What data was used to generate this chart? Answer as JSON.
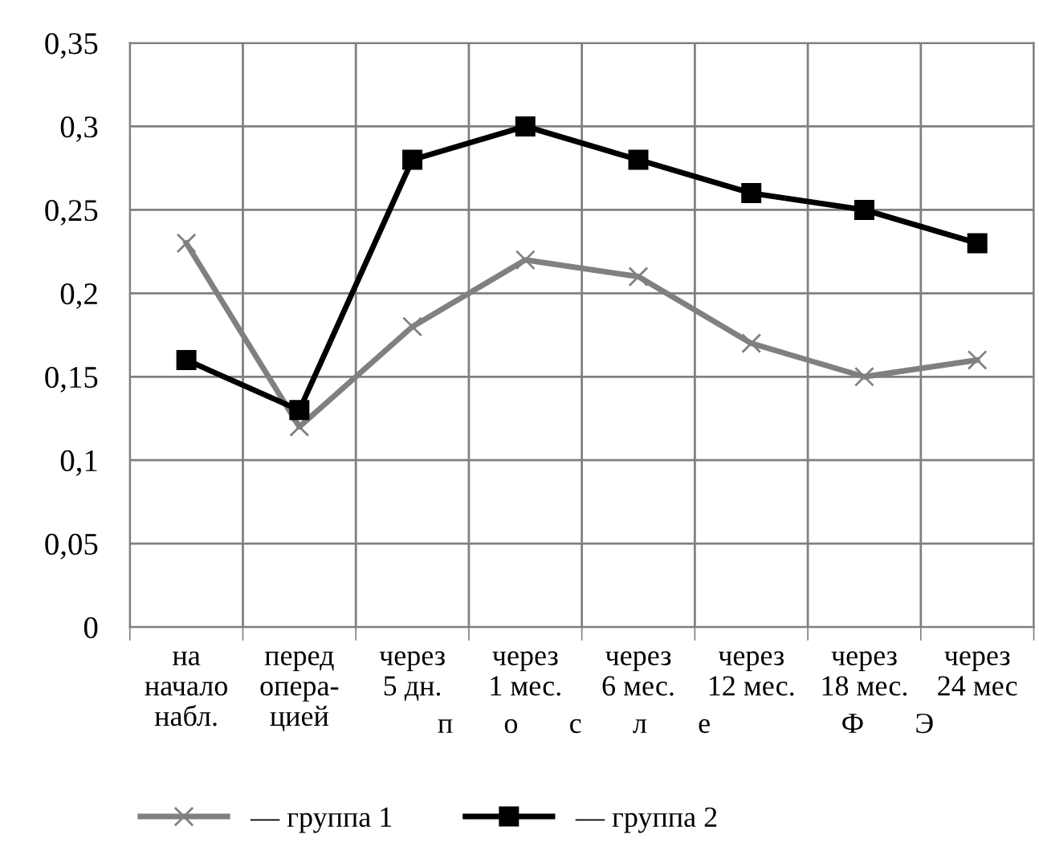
{
  "chart_data": {
    "type": "line",
    "categories": [
      "на\nначало\nнабл.",
      "перед\nопера-\nцией",
      "через\n5 дн.",
      "через\n1 мес.",
      "через\n6 мес.",
      "через\n12 мес.",
      "через\n18 мес.",
      "через\n24 мес"
    ],
    "series": [
      {
        "name": "— группа 1",
        "color": "#808080",
        "marker": "cross",
        "values": [
          0.23,
          0.12,
          0.18,
          0.22,
          0.21,
          0.17,
          0.15,
          0.16
        ]
      },
      {
        "name": "— группа 2",
        "color": "#000000",
        "marker": "square",
        "values": [
          0.16,
          0.13,
          0.28,
          0.3,
          0.28,
          0.26,
          0.25,
          0.23
        ]
      }
    ],
    "ylim": [
      0,
      0.35
    ],
    "yticks": [
      {
        "value": 0,
        "label": "0"
      },
      {
        "value": 0.05,
        "label": "0,05"
      },
      {
        "value": 0.1,
        "label": "0,1"
      },
      {
        "value": 0.15,
        "label": "0,15"
      },
      {
        "value": 0.2,
        "label": "0,2"
      },
      {
        "value": 0.25,
        "label": "0,25"
      },
      {
        "value": 0.3,
        "label": "0,3"
      },
      {
        "value": 0.35,
        "label": "0,35"
      }
    ],
    "grid": true,
    "legend": "bottom",
    "line_style": "solid",
    "annotations": [
      "п       о       с       л       е                  Ф       Э"
    ]
  }
}
